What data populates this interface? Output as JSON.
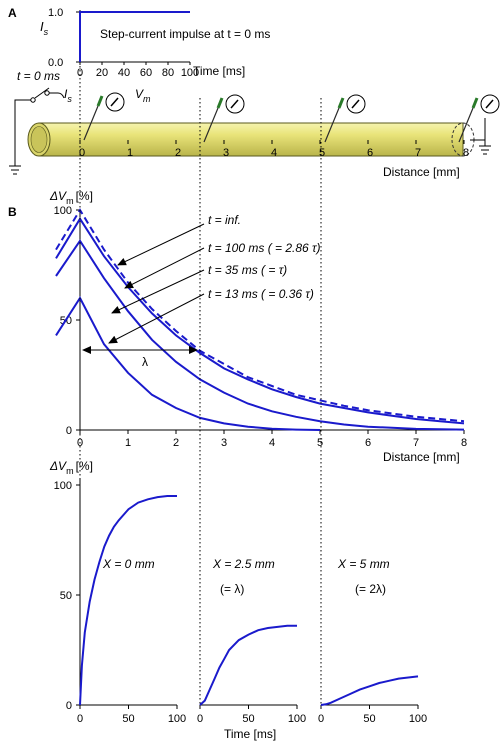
{
  "panel_a": {
    "letter": "A",
    "stim_y_label": "I",
    "stim_y_sub": "s",
    "stim_ticks_y": [
      "1.0",
      "0.0"
    ],
    "stim_ticks_x": [
      "0",
      "20",
      "40",
      "60",
      "80",
      "100"
    ],
    "stim_x_label": "Time [ms]",
    "stim_title": "Step-current impulse at t = 0 ms",
    "switch_label": "t = 0 ms",
    "current_label": "I",
    "current_sub": "s",
    "vm_label": "V",
    "vm_sub": "m",
    "cable_ticks": [
      "0",
      "1",
      "2",
      "3",
      "4",
      "5",
      "6",
      "7",
      "8"
    ],
    "cable_x_label": "Distance [mm]"
  },
  "panel_b": {
    "letter": "B",
    "spatial_ylabel": "ΔV",
    "spatial_ylabel_sub": "m",
    "spatial_ylabel_unit": "[%]",
    "spatial_yticks": [
      "100",
      "50",
      "0"
    ],
    "spatial_xticks": [
      "0",
      "1",
      "2",
      "3",
      "4",
      "5",
      "6",
      "7",
      "8"
    ],
    "spatial_xlabel": "Distance [mm]",
    "lambda_label": "λ",
    "time_ylabel": "ΔV",
    "time_ylabel_sub": "m",
    "time_ylabel_unit": "[%]",
    "time_yticks": [
      "100",
      "50",
      "0"
    ],
    "time_xticks": [
      "0",
      "50",
      "100"
    ],
    "time_xlabel": "Time [ms]"
  },
  "colors": {
    "curve": "#1a1acc",
    "cable_fill": "#e6e27a",
    "cable_stroke": "#5a5a1e",
    "axis": "#000000"
  },
  "chart_data": [
    {
      "type": "line",
      "title": "Step-current impulse at t = 0 ms",
      "xlabel": "Time [ms]",
      "ylabel": "Is",
      "xlim": [
        0,
        100
      ],
      "ylim": [
        0,
        1
      ],
      "series": [
        {
          "x": [
            0,
            0,
            100
          ],
          "y": [
            0,
            1,
            1
          ]
        }
      ]
    },
    {
      "type": "line",
      "xlabel": "Distance [mm]",
      "ylabel": "ΔVm [%]",
      "xlim": [
        0,
        8
      ],
      "ylim": [
        0,
        100
      ],
      "annotations": [
        "t = inf.",
        "t = 100 ms ( = 2.86 τ)",
        "t = 35 ms ( = τ)",
        "t = 13 ms ( = 0.36 τ)",
        "λ"
      ],
      "series": [
        {
          "name": "t = inf.",
          "dashed": true,
          "x": [
            -0.5,
            0,
            0.5,
            1,
            1.5,
            2,
            2.5,
            3,
            3.5,
            4,
            4.5,
            5,
            5.5,
            6,
            6.5,
            7,
            7.5,
            8
          ],
          "y": [
            82,
            100,
            82,
            67,
            55,
            45,
            36,
            30,
            24,
            20,
            16,
            13.5,
            11,
            9,
            7.5,
            6,
            5,
            4
          ]
        },
        {
          "name": "t = 100 ms ( = 2.86 τ)",
          "x": [
            -0.5,
            0,
            0.5,
            1,
            1.5,
            2,
            2.5,
            3,
            3.5,
            4,
            4.5,
            5,
            5.5,
            6,
            6.5,
            7,
            7.5,
            8
          ],
          "y": [
            78,
            96,
            79,
            65,
            53,
            43,
            35,
            28,
            23,
            18.5,
            15,
            12,
            10,
            8,
            6.5,
            5,
            4,
            3
          ]
        },
        {
          "name": "t = 35 ms ( = τ)",
          "x": [
            -0.5,
            0,
            0.5,
            1,
            1.5,
            2,
            2.5,
            3,
            3.5,
            4,
            4.5,
            5,
            5.5,
            6,
            6.5,
            7,
            7.5,
            8
          ],
          "y": [
            70,
            86,
            69,
            54,
            41,
            31,
            23,
            17,
            12,
            8.5,
            6,
            4,
            2.5,
            1.5,
            1,
            0.5,
            0.3,
            0.2
          ]
        },
        {
          "name": "t = 13 ms ( = 0.36 τ)",
          "x": [
            -0.5,
            0,
            0.5,
            1,
            1.5,
            2,
            2.5,
            3,
            3.5,
            4,
            4.5,
            5
          ],
          "y": [
            43,
            60,
            39,
            26,
            16,
            10,
            5.5,
            3,
            1.5,
            0.6,
            0.2,
            0
          ]
        }
      ]
    },
    {
      "type": "line",
      "title": "X = 0 mm",
      "xlabel": "Time [ms]",
      "ylabel": "ΔVm [%]",
      "xlim": [
        0,
        100
      ],
      "ylim": [
        0,
        100
      ],
      "series": [
        {
          "x": [
            0,
            2,
            5,
            10,
            15,
            20,
            25,
            30,
            35,
            40,
            50,
            60,
            70,
            80,
            90,
            100
          ],
          "y": [
            0,
            18,
            33,
            47,
            57,
            65,
            72,
            77,
            81,
            84,
            89,
            92,
            93.5,
            94.5,
            95,
            95
          ]
        }
      ]
    },
    {
      "type": "line",
      "title": "X = 2.5 mm",
      "subtitle": "(= λ)",
      "xlabel": "Time [ms]",
      "xlim": [
        0,
        100
      ],
      "ylim": [
        0,
        100
      ],
      "series": [
        {
          "x": [
            0,
            5,
            10,
            15,
            20,
            25,
            30,
            40,
            50,
            60,
            70,
            80,
            90,
            100
          ],
          "y": [
            0,
            2,
            7,
            12,
            17,
            21,
            25,
            29.5,
            32,
            34,
            35,
            35.5,
            36,
            36
          ]
        }
      ]
    },
    {
      "type": "line",
      "title": "X = 5 mm",
      "subtitle": "(= 2λ)",
      "xlabel": "Time [ms]",
      "xlim": [
        0,
        100
      ],
      "ylim": [
        0,
        100
      ],
      "series": [
        {
          "x": [
            0,
            5,
            10,
            20,
            30,
            40,
            50,
            60,
            70,
            80,
            90,
            100
          ],
          "y": [
            0,
            0.3,
            1,
            3,
            5,
            7,
            8.5,
            10,
            11,
            12,
            12.5,
            13
          ]
        }
      ]
    }
  ]
}
